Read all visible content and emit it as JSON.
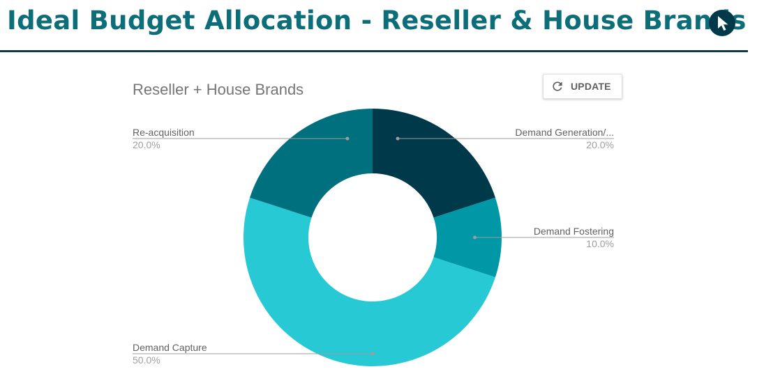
{
  "header": {
    "title": "Ideal Budget Allocation - Reseller & House Brands"
  },
  "toolbar": {
    "update_label": "UPDATE"
  },
  "icons": {
    "header": "cursor-arrow-icon",
    "update": "refresh-icon"
  },
  "chart_data": {
    "type": "pie",
    "variant": "donut",
    "title": "Reseller + House Brands",
    "slices": [
      {
        "label": "Demand Generation/...",
        "percent_label": "20.0%",
        "value": 20.0,
        "color": "#00394a"
      },
      {
        "label": "Demand Fostering",
        "percent_label": "10.0%",
        "value": 10.0,
        "color": "#0097a7"
      },
      {
        "label": "Demand Capture",
        "percent_label": "50.0%",
        "value": 50.0,
        "color": "#26c9d4"
      },
      {
        "label": "Re-acquisition",
        "percent_label": "20.0%",
        "value": 20.0,
        "color": "#006f7e"
      }
    ],
    "label_color": "#616161",
    "percent_color": "#9e9e9e",
    "leader_color": "#9e9e9e"
  }
}
